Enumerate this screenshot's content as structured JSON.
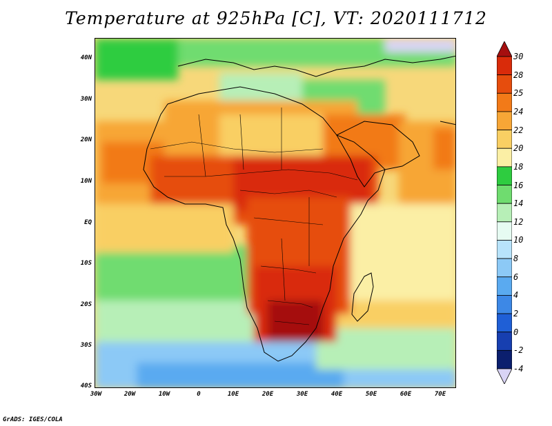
{
  "title": "Temperature at 925hPa [C], VT: 2020111712",
  "credit": "GrADS: IGES/COLA",
  "map": {
    "projection": "lat-lon",
    "lon_range": [
      -30,
      75
    ],
    "lat_range": [
      -40,
      45
    ],
    "lat_labels": [
      "40N",
      "30N",
      "20N",
      "10N",
      "EQ",
      "10S",
      "20S",
      "30S",
      "40S"
    ],
    "lon_labels": [
      "30W",
      "20W",
      "10W",
      "0",
      "10E",
      "20E",
      "30E",
      "40E",
      "50E",
      "60E",
      "70E"
    ]
  },
  "colorbar": {
    "levels": [
      "30",
      "28",
      "25",
      "24",
      "22",
      "20",
      "18",
      "16",
      "14",
      "12",
      "10",
      "8",
      "6",
      "4",
      "2",
      "0",
      "-2",
      "-4"
    ],
    "colors": [
      "#a50f0f",
      "#d92b0a",
      "#e64d0d",
      "#f27a18",
      "#f7a636",
      "#f9cf63",
      "#fbefa5",
      "#2ecc40",
      "#6fdc6f",
      "#b7efb7",
      "#e6fbf2",
      "#b8e3fb",
      "#8cc9f6",
      "#5aaaf0",
      "#3d88e6",
      "#1f5fd6",
      "#173fb0",
      "#0b1f6e",
      "#d9d4f5"
    ]
  }
}
